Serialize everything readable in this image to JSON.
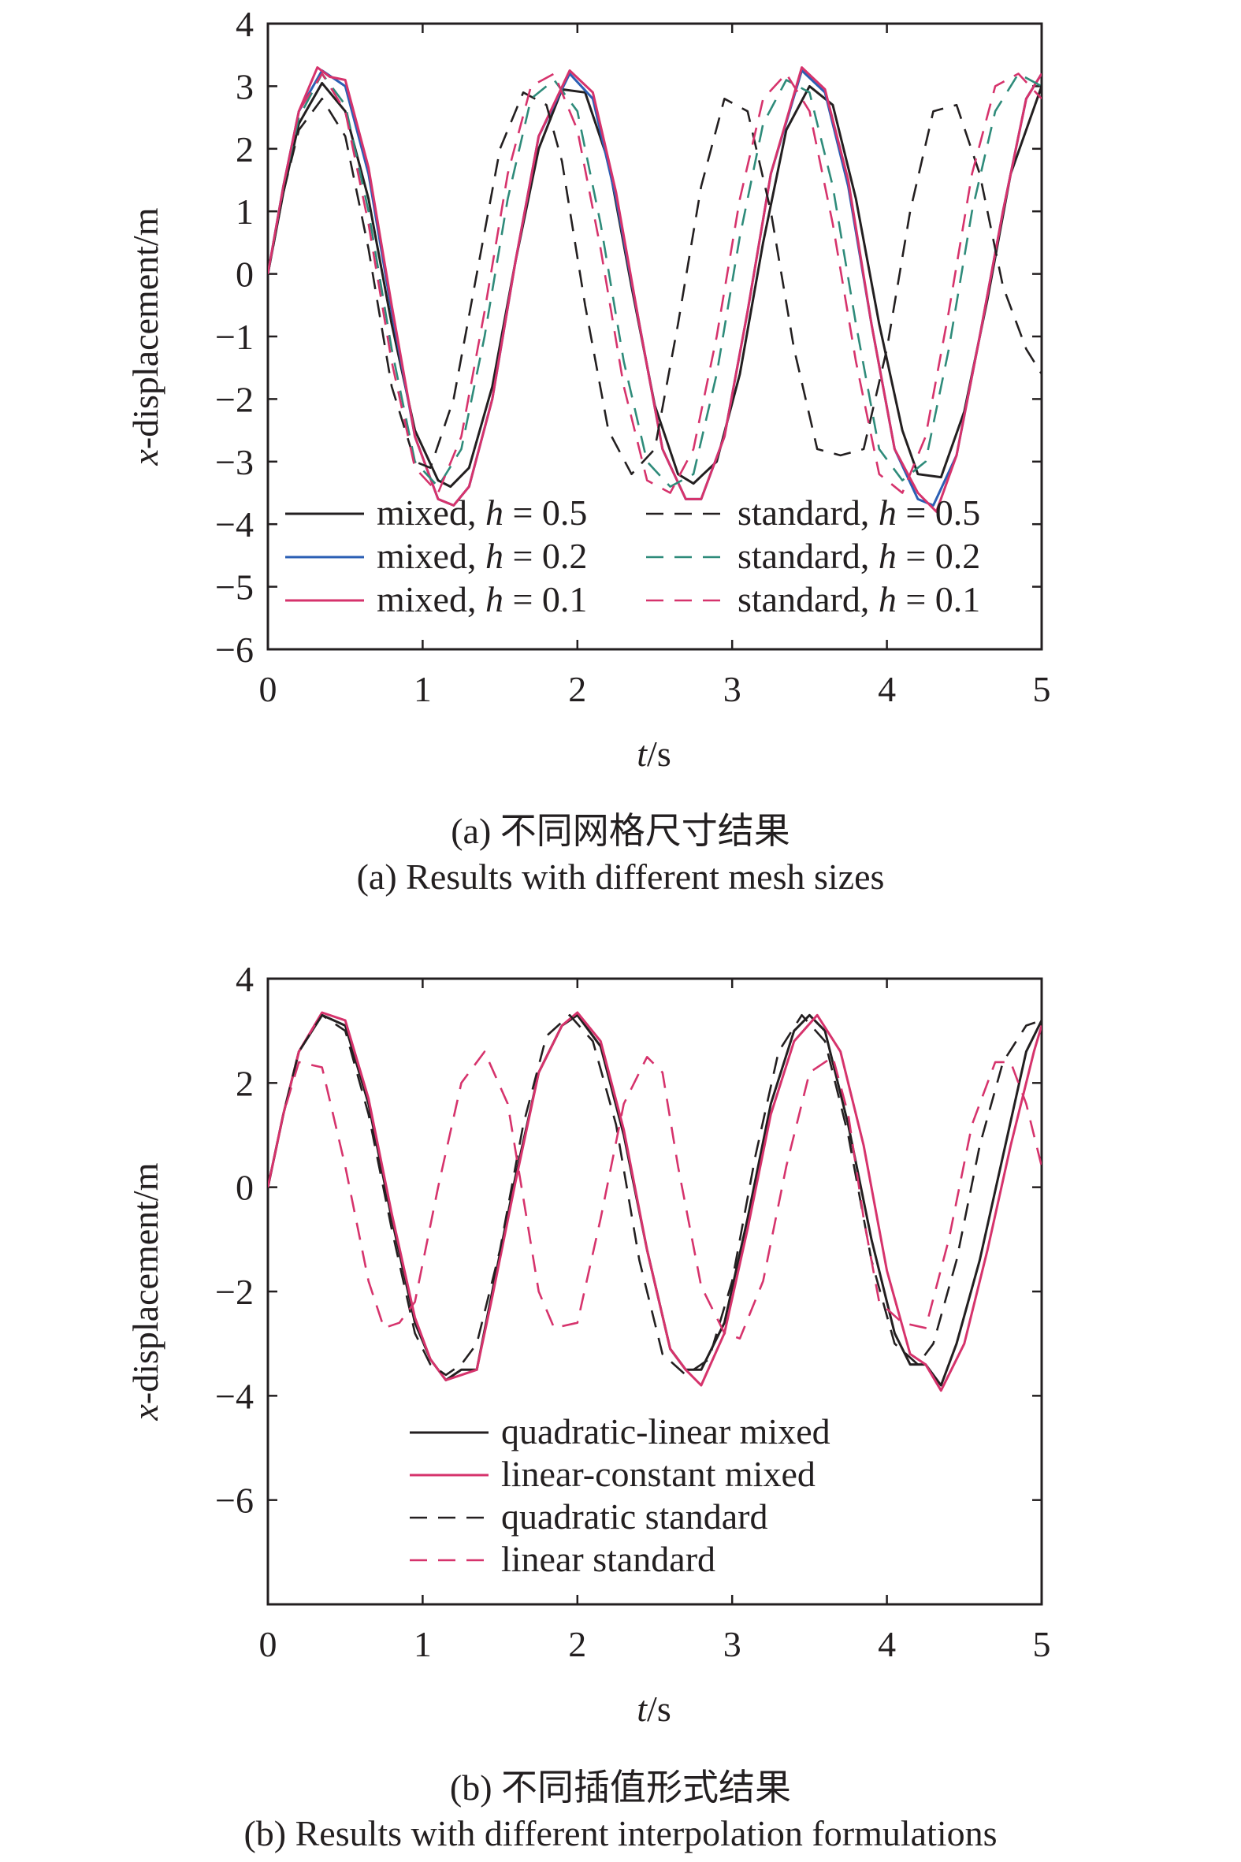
{
  "figure": {
    "panel_a": {
      "caption_cn": "(a) 不同网格尺寸结果",
      "caption_en": "(a) Results with different mesh sizes"
    },
    "panel_b": {
      "caption_cn": "(b) 不同插值形式结果",
      "caption_en": "(b) Results with different interpolation formulations"
    }
  },
  "colors": {
    "black": "#231f20",
    "magenta": "#d6336c",
    "blue": "#2b5fb4",
    "teal": "#2e8b7a"
  },
  "chart_data": [
    {
      "type": "line",
      "panel": "a",
      "xlabel": "t/s",
      "ylabel": "x-displacement/m",
      "xlim": [
        0,
        5
      ],
      "ylim": [
        -6,
        4
      ],
      "xticks": [
        0,
        1,
        2,
        3,
        4,
        5
      ],
      "yticks": [
        4,
        3,
        2,
        1,
        0,
        -1,
        -2,
        -3,
        -4,
        -5,
        -6
      ],
      "ytick_labels": [
        "4",
        "3",
        "2",
        "1",
        "0",
        "−1",
        "−2",
        "−3",
        "−4",
        "−5",
        "−6"
      ],
      "grid": false,
      "legend_placement": "bottom",
      "series": [
        {
          "name": "mixed, h = 0.5",
          "style": "solid",
          "color": "#231f20",
          "x": [
            0,
            0.1,
            0.2,
            0.35,
            0.5,
            0.65,
            0.8,
            0.95,
            1.1,
            1.18,
            1.3,
            1.45,
            1.6,
            1.75,
            1.9,
            2.05,
            2.2,
            2.35,
            2.5,
            2.65,
            2.75,
            2.9,
            3.05,
            3.2,
            3.35,
            3.5,
            3.65,
            3.8,
            3.95,
            4.1,
            4.2,
            4.35,
            4.5,
            4.65,
            4.8,
            5.0
          ],
          "y": [
            0,
            1.3,
            2.4,
            3.05,
            2.6,
            1.2,
            -0.8,
            -2.5,
            -3.3,
            -3.4,
            -3.1,
            -1.8,
            0.2,
            2.0,
            2.95,
            2.9,
            1.8,
            -0.2,
            -2.1,
            -3.2,
            -3.35,
            -3.0,
            -1.6,
            0.5,
            2.3,
            3.0,
            2.7,
            1.2,
            -0.8,
            -2.5,
            -3.2,
            -3.25,
            -2.2,
            -0.4,
            1.6,
            3.0
          ]
        },
        {
          "name": "mixed, h = 0.2",
          "style": "solid",
          "color": "#2b5fb4",
          "x": [
            0,
            0.1,
            0.2,
            0.35,
            0.5,
            0.65,
            0.8,
            0.95,
            1.1,
            1.2,
            1.3,
            1.45,
            1.6,
            1.75,
            1.95,
            2.1,
            2.25,
            2.4,
            2.55,
            2.7,
            2.8,
            2.95,
            3.1,
            3.25,
            3.45,
            3.6,
            3.75,
            3.9,
            4.05,
            4.2,
            4.3,
            4.45,
            4.6,
            4.75,
            4.9,
            5.0
          ],
          "y": [
            0,
            1.4,
            2.6,
            3.25,
            3.0,
            1.6,
            -0.6,
            -2.6,
            -3.6,
            -3.7,
            -3.4,
            -2.0,
            0.2,
            2.2,
            3.2,
            2.8,
            1.2,
            -0.8,
            -2.8,
            -3.6,
            -3.6,
            -2.6,
            -0.6,
            1.6,
            3.25,
            2.9,
            1.4,
            -0.8,
            -2.8,
            -3.6,
            -3.7,
            -2.9,
            -1.0,
            1.0,
            2.8,
            3.2
          ]
        },
        {
          "name": "mixed, h = 0.1",
          "style": "solid",
          "color": "#d6336c",
          "x": [
            0,
            0.1,
            0.2,
            0.32,
            0.4,
            0.5,
            0.65,
            0.8,
            0.95,
            1.1,
            1.2,
            1.3,
            1.45,
            1.6,
            1.75,
            1.95,
            2.1,
            2.25,
            2.4,
            2.55,
            2.7,
            2.8,
            2.95,
            3.1,
            3.25,
            3.45,
            3.6,
            3.75,
            3.9,
            4.05,
            4.2,
            4.32,
            4.45,
            4.6,
            4.75,
            4.9,
            5.0
          ],
          "y": [
            0,
            1.4,
            2.6,
            3.3,
            3.15,
            3.1,
            1.7,
            -0.5,
            -2.6,
            -3.6,
            -3.7,
            -3.4,
            -2.0,
            0.2,
            2.2,
            3.25,
            2.9,
            1.3,
            -0.8,
            -2.8,
            -3.6,
            -3.6,
            -2.6,
            -0.6,
            1.6,
            3.3,
            2.95,
            1.5,
            -0.8,
            -2.8,
            -3.5,
            -3.8,
            -2.9,
            -1.0,
            1.0,
            2.8,
            3.2
          ]
        },
        {
          "name": "standard, h = 0.5",
          "style": "dashed",
          "color": "#231f20",
          "x": [
            0,
            0.1,
            0.2,
            0.35,
            0.5,
            0.65,
            0.8,
            0.95,
            1.05,
            1.2,
            1.35,
            1.5,
            1.65,
            1.8,
            1.9,
            2.05,
            2.2,
            2.35,
            2.5,
            2.65,
            2.8,
            2.95,
            3.1,
            3.25,
            3.4,
            3.55,
            3.7,
            3.85,
            4.0,
            4.15,
            4.3,
            4.45,
            4.6,
            4.75,
            4.9,
            5.0
          ],
          "y": [
            0,
            1.3,
            2.3,
            2.8,
            2.2,
            0.4,
            -1.8,
            -3.0,
            -3.1,
            -2.0,
            0.0,
            2.0,
            2.9,
            2.7,
            1.8,
            -0.5,
            -2.5,
            -3.2,
            -2.8,
            -0.8,
            1.4,
            2.8,
            2.6,
            1.0,
            -1.2,
            -2.8,
            -2.9,
            -2.8,
            -1.2,
            1.0,
            2.6,
            2.7,
            1.6,
            -0.2,
            -1.2,
            -1.6
          ]
        },
        {
          "name": "standard, h = 0.2",
          "style": "dashed",
          "color": "#2e8b7a",
          "x": [
            0,
            0.1,
            0.2,
            0.35,
            0.5,
            0.65,
            0.8,
            0.95,
            1.1,
            1.25,
            1.4,
            1.55,
            1.7,
            1.85,
            2.0,
            2.15,
            2.3,
            2.45,
            2.6,
            2.75,
            2.9,
            3.05,
            3.2,
            3.35,
            3.5,
            3.65,
            3.8,
            3.95,
            4.1,
            4.25,
            4.4,
            4.55,
            4.7,
            4.85,
            5.0
          ],
          "y": [
            0,
            1.4,
            2.5,
            3.2,
            2.7,
            1.0,
            -1.2,
            -3.0,
            -3.4,
            -2.8,
            -1.0,
            1.2,
            2.8,
            3.1,
            2.6,
            0.8,
            -1.4,
            -3.0,
            -3.4,
            -3.2,
            -1.6,
            0.6,
            2.4,
            3.1,
            2.9,
            1.4,
            -0.8,
            -2.8,
            -3.3,
            -3.0,
            -1.2,
            1.0,
            2.6,
            3.2,
            3.0
          ]
        },
        {
          "name": "standard, h = 0.1",
          "style": "dashed",
          "color": "#d6336c",
          "x": [
            0,
            0.1,
            0.2,
            0.35,
            0.5,
            0.65,
            0.8,
            0.95,
            1.1,
            1.25,
            1.4,
            1.55,
            1.7,
            1.85,
            2.0,
            2.15,
            2.3,
            2.45,
            2.6,
            2.75,
            2.9,
            3.05,
            3.2,
            3.35,
            3.5,
            3.65,
            3.8,
            3.95,
            4.1,
            4.25,
            4.4,
            4.55,
            4.7,
            4.85,
            5.0
          ],
          "y": [
            0,
            1.4,
            2.6,
            3.2,
            2.6,
            0.8,
            -1.4,
            -3.1,
            -3.5,
            -2.6,
            -0.6,
            1.6,
            3.0,
            3.2,
            2.3,
            0.4,
            -1.8,
            -3.3,
            -3.5,
            -2.8,
            -1.0,
            1.2,
            2.8,
            3.2,
            2.6,
            0.8,
            -1.4,
            -3.2,
            -3.5,
            -2.6,
            -0.6,
            1.6,
            3.0,
            3.2,
            2.8
          ]
        }
      ]
    },
    {
      "type": "line",
      "panel": "b",
      "xlabel": "t/s",
      "ylabel": "x-displacement/m",
      "xlim": [
        0,
        5
      ],
      "ylim": [
        -8,
        4
      ],
      "xticks": [
        0,
        1,
        2,
        3,
        4,
        5
      ],
      "yticks": [
        4,
        2,
        0,
        -2,
        -4,
        -6
      ],
      "ytick_labels": [
        "4",
        "2",
        "0",
        "−2",
        "−4",
        "−6"
      ],
      "grid": false,
      "legend_placement": "bottom",
      "series": [
        {
          "name": "quadratic-linear mixed",
          "style": "solid",
          "color": "#231f20",
          "x": [
            0,
            0.1,
            0.2,
            0.35,
            0.5,
            0.65,
            0.8,
            0.95,
            1.05,
            1.15,
            1.25,
            1.35,
            1.45,
            1.6,
            1.75,
            1.9,
            2.0,
            2.15,
            2.3,
            2.45,
            2.6,
            2.7,
            2.8,
            2.95,
            3.1,
            3.25,
            3.4,
            3.5,
            3.6,
            3.75,
            3.9,
            4.05,
            4.15,
            4.25,
            4.35,
            4.45,
            4.6,
            4.75,
            4.9,
            5.0
          ],
          "y": [
            0,
            1.4,
            2.6,
            3.3,
            3.1,
            1.6,
            -0.6,
            -2.6,
            -3.3,
            -3.7,
            -3.5,
            -3.5,
            -2.0,
            0.2,
            2.2,
            3.1,
            3.3,
            2.7,
            1.0,
            -1.2,
            -3.1,
            -3.5,
            -3.5,
            -2.6,
            -0.6,
            1.6,
            3.0,
            3.3,
            3.0,
            1.2,
            -1.0,
            -2.8,
            -3.4,
            -3.4,
            -3.8,
            -3.0,
            -1.4,
            0.6,
            2.6,
            3.2
          ]
        },
        {
          "name": "linear-constant mixed",
          "style": "solid",
          "color": "#d6336c",
          "x": [
            0,
            0.1,
            0.2,
            0.35,
            0.5,
            0.65,
            0.8,
            0.95,
            1.05,
            1.15,
            1.25,
            1.35,
            1.45,
            1.6,
            1.75,
            1.9,
            2.0,
            2.15,
            2.3,
            2.45,
            2.6,
            2.7,
            2.8,
            2.95,
            3.1,
            3.25,
            3.4,
            3.55,
            3.7,
            3.85,
            4.0,
            4.15,
            4.25,
            4.35,
            4.5,
            4.65,
            4.8,
            4.95,
            5.0
          ],
          "y": [
            0,
            1.4,
            2.6,
            3.35,
            3.2,
            1.7,
            -0.5,
            -2.5,
            -3.3,
            -3.7,
            -3.6,
            -3.5,
            -2.1,
            0.1,
            2.2,
            3.1,
            3.35,
            2.8,
            1.1,
            -1.2,
            -3.1,
            -3.5,
            -3.8,
            -2.8,
            -0.8,
            1.4,
            2.8,
            3.3,
            2.6,
            0.8,
            -1.6,
            -3.2,
            -3.4,
            -3.9,
            -3.0,
            -1.2,
            0.8,
            2.6,
            3.1
          ]
        },
        {
          "name": "quadratic standard",
          "style": "dashed",
          "color": "#231f20",
          "x": [
            0,
            0.1,
            0.2,
            0.35,
            0.5,
            0.65,
            0.8,
            0.95,
            1.05,
            1.15,
            1.25,
            1.35,
            1.5,
            1.65,
            1.8,
            1.95,
            2.1,
            2.25,
            2.4,
            2.55,
            2.7,
            2.85,
            3.0,
            3.15,
            3.3,
            3.45,
            3.6,
            3.75,
            3.9,
            4.05,
            4.2,
            4.3,
            4.45,
            4.6,
            4.75,
            4.9,
            5.0
          ],
          "y": [
            0,
            1.4,
            2.6,
            3.3,
            3.0,
            1.4,
            -0.8,
            -2.8,
            -3.4,
            -3.6,
            -3.4,
            -3.0,
            -1.2,
            1.2,
            2.9,
            3.3,
            2.8,
            1.2,
            -1.4,
            -3.2,
            -3.6,
            -3.3,
            -1.8,
            0.6,
            2.6,
            3.3,
            2.8,
            1.0,
            -1.4,
            -3.0,
            -3.4,
            -3.0,
            -1.4,
            0.8,
            2.4,
            3.1,
            3.2
          ]
        },
        {
          "name": "linear standard",
          "style": "dashed",
          "color": "#d6336c",
          "x": [
            0,
            0.1,
            0.2,
            0.35,
            0.5,
            0.65,
            0.75,
            0.85,
            0.95,
            1.1,
            1.25,
            1.4,
            1.55,
            1.65,
            1.75,
            1.85,
            2.0,
            2.15,
            2.3,
            2.45,
            2.55,
            2.65,
            2.8,
            2.95,
            3.05,
            3.2,
            3.35,
            3.5,
            3.65,
            3.75,
            3.85,
            3.95,
            4.1,
            4.25,
            4.4,
            4.55,
            4.7,
            4.8,
            4.9,
            5.0
          ],
          "y": [
            0,
            1.4,
            2.4,
            2.3,
            0.4,
            -1.8,
            -2.7,
            -2.6,
            -2.2,
            0.0,
            2.0,
            2.6,
            1.6,
            -0.2,
            -2.0,
            -2.7,
            -2.6,
            -0.6,
            1.6,
            2.5,
            2.2,
            0.4,
            -1.9,
            -2.8,
            -2.9,
            -1.8,
            0.4,
            2.2,
            2.5,
            1.4,
            -0.6,
            -2.2,
            -2.6,
            -2.7,
            -1.0,
            1.2,
            2.4,
            2.4,
            1.6,
            0.4
          ]
        }
      ]
    }
  ]
}
